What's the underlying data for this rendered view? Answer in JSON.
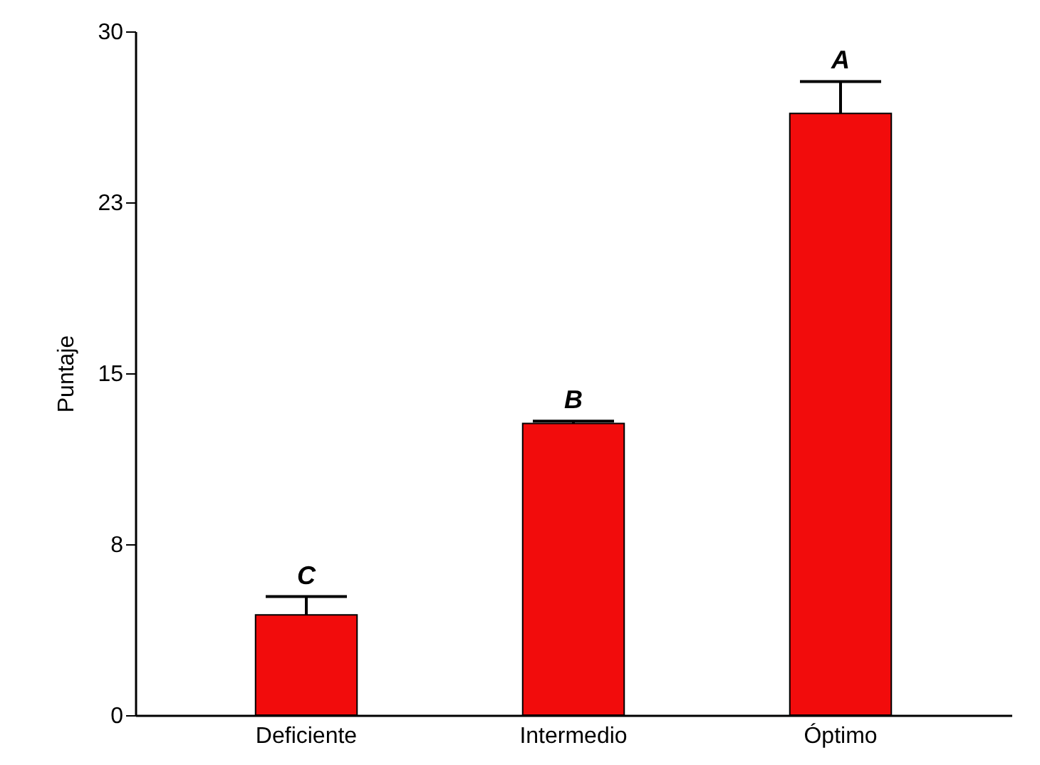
{
  "chart_data": {
    "type": "bar",
    "ylabel": "Puntaje",
    "categories": [
      "Deficiente",
      "Intermedio",
      "Óptimo"
    ],
    "values": [
      4.4,
      12.8,
      26.4
    ],
    "color": "#f20c0c",
    "errors": [
      [
        4.4,
        5.2
      ],
      [
        12.8,
        12.9
      ],
      [
        26.4,
        27.8
      ]
    ],
    "ylim": [
      0,
      30
    ],
    "yticks": [
      0,
      {
        "value": 7.5,
        "label": "8"
      },
      15,
      {
        "value": 22.5,
        "label": "23"
      },
      30
    ],
    "grid": false,
    "annotations": [
      {
        "text": "C",
        "x": "Deficiente",
        "y": 5.2
      },
      {
        "text": "B",
        "x": "Intermedio",
        "y": 12.9
      },
      {
        "text": "A",
        "x": "Óptimo",
        "y": 27.8
      }
    ]
  }
}
